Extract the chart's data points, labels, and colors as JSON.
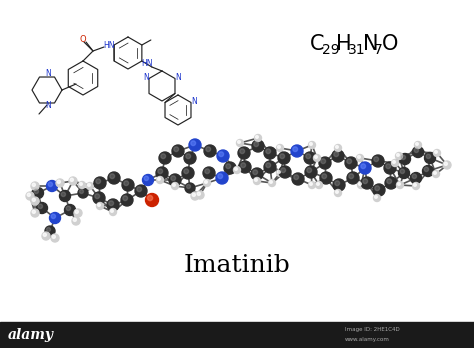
{
  "title": "Imatinib",
  "background_color": "#ffffff",
  "title_fontsize": 18,
  "title_color": "#000000",
  "formula_color": "#000000",
  "formula_fontsize": 15,
  "sub_fontsize": 10,
  "watermark_text": "alamy",
  "watermark_bg": "#1a1a1a",
  "watermark_url": "www.alamy.com",
  "image_id": "Image ID: 2HE1C4D",
  "N_label_color": "#1a33cc",
  "O_label_color": "#cc2200",
  "bond_color": "#222222",
  "atom_carbon_color": "#2e2e2e",
  "atom_hydrogen_color": "#d0d0d0",
  "atom_nitrogen_color": "#2244cc",
  "atom_oxygen_color": "#cc2200",
  "bond_draw_color": "#555555"
}
